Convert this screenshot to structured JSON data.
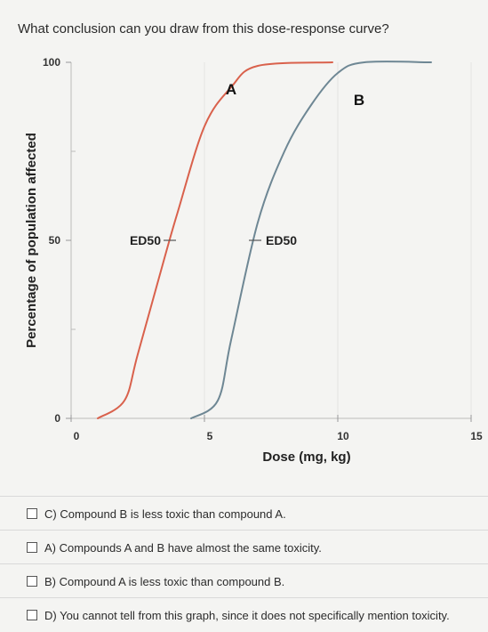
{
  "question": "What conclusion can you draw from this dose-response curve?",
  "chart_data": {
    "type": "line",
    "xlabel": "Dose (mg, kg)",
    "ylabel": "Percentage of population affected",
    "xlim": [
      0,
      15
    ],
    "ylim": [
      0,
      100
    ],
    "x_ticks": [
      {
        "value": 0,
        "label": "0"
      },
      {
        "value": 5,
        "label": "5"
      },
      {
        "value": 10,
        "label": "10"
      },
      {
        "value": 15,
        "label": "15"
      }
    ],
    "y_ticks": [
      {
        "value": 0,
        "label": "0"
      },
      {
        "value": 50,
        "label": "50"
      },
      {
        "value": 100,
        "label": "100"
      }
    ],
    "series": [
      {
        "name": "A",
        "color": "#d9614c",
        "points": [
          [
            1,
            0
          ],
          [
            2,
            5
          ],
          [
            2.5,
            18
          ],
          [
            3.5,
            45
          ],
          [
            4,
            58
          ],
          [
            5,
            82
          ],
          [
            6,
            93
          ],
          [
            7,
            99
          ],
          [
            9.8,
            100
          ]
        ],
        "ed50_x": 3.7,
        "ed50_label": "ED50"
      },
      {
        "name": "B",
        "color": "#6e8794",
        "points": [
          [
            4.5,
            0
          ],
          [
            5.5,
            5
          ],
          [
            6,
            22
          ],
          [
            7,
            55
          ],
          [
            8,
            75
          ],
          [
            9,
            88
          ],
          [
            10,
            97
          ],
          [
            11,
            100
          ],
          [
            13.5,
            100
          ]
        ],
        "ed50_x": 6.9,
        "ed50_label": "ED50"
      }
    ]
  },
  "options": [
    "C) Compound B is less toxic than compound A.",
    "A) Compounds A and B have almost the same toxicity.",
    "B) Compound A is less toxic than compound B.",
    "D) You cannot tell from this graph, since it does not specifically mention toxicity."
  ]
}
